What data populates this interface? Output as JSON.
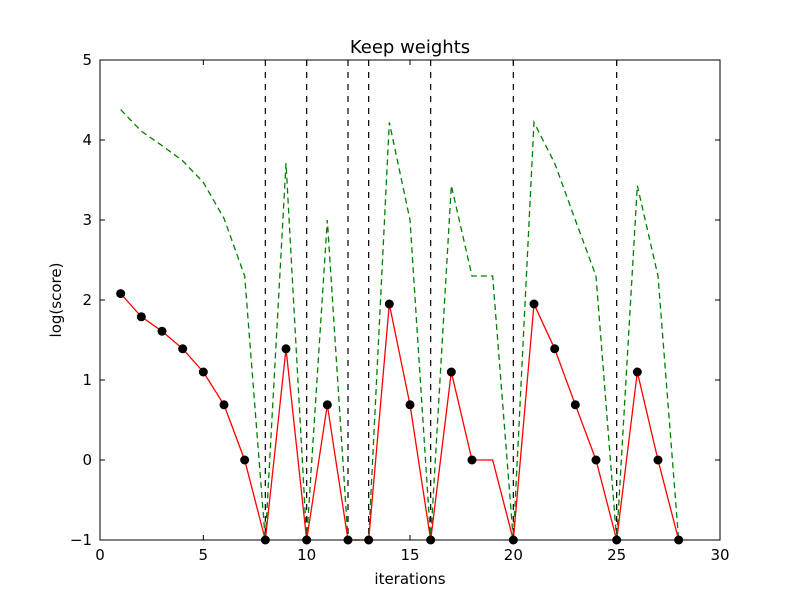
{
  "chart_data": {
    "type": "line",
    "title": "Keep weights",
    "xlabel": "iterations",
    "ylabel": "log(score)",
    "xlim": [
      0,
      30
    ],
    "ylim": [
      -1,
      5
    ],
    "xticks": [
      0,
      5,
      10,
      15,
      20,
      25,
      30
    ],
    "yticks": [
      -1,
      0,
      1,
      2,
      3,
      4,
      5
    ],
    "grid": false,
    "vlines": {
      "x": [
        8,
        10,
        12,
        13,
        16,
        20,
        25
      ],
      "style": "dashed",
      "color": "#000000"
    },
    "series": [
      {
        "style": "solid",
        "color": "#ff0000",
        "marker": "circle",
        "marker_color": "#000000",
        "x": [
          1,
          2,
          3,
          4,
          5,
          6,
          7,
          8,
          9,
          10,
          11,
          12,
          13,
          14,
          15,
          16,
          17,
          18,
          19,
          20,
          21,
          22,
          23,
          24,
          25,
          26,
          27,
          28
        ],
        "y": [
          2.08,
          1.79,
          1.61,
          1.39,
          1.1,
          0.69,
          0.0,
          -1.0,
          1.39,
          -1.0,
          0.69,
          -1.0,
          -1.0,
          1.95,
          0.69,
          -1.0,
          1.1,
          0.0,
          0.0,
          -1.0,
          1.95,
          1.39,
          0.69,
          0.0,
          -1.0,
          1.1,
          0.0,
          -1.0
        ],
        "marker_mask": [
          1,
          1,
          1,
          1,
          1,
          1,
          1,
          1,
          1,
          1,
          1,
          1,
          1,
          1,
          1,
          1,
          1,
          1,
          0,
          1,
          1,
          1,
          1,
          1,
          1,
          1,
          1,
          1
        ]
      },
      {
        "style": "dashed",
        "color": "#008000",
        "x": [
          1,
          2,
          3,
          4,
          5,
          6,
          7,
          8,
          9,
          10,
          11,
          12,
          13,
          14,
          15,
          16,
          17,
          18,
          19,
          20,
          21,
          22,
          23,
          24,
          25,
          26,
          27,
          28
        ],
        "y": [
          4.38,
          4.11,
          3.93,
          3.74,
          3.47,
          3.02,
          2.3,
          -1.0,
          3.71,
          -1.0,
          3.0,
          -1.0,
          -1.0,
          4.22,
          3.0,
          -1.0,
          3.43,
          2.3,
          2.3,
          -1.0,
          4.22,
          3.71,
          3.0,
          2.3,
          -1.0,
          3.43,
          2.3,
          -1.0
        ]
      }
    ]
  }
}
